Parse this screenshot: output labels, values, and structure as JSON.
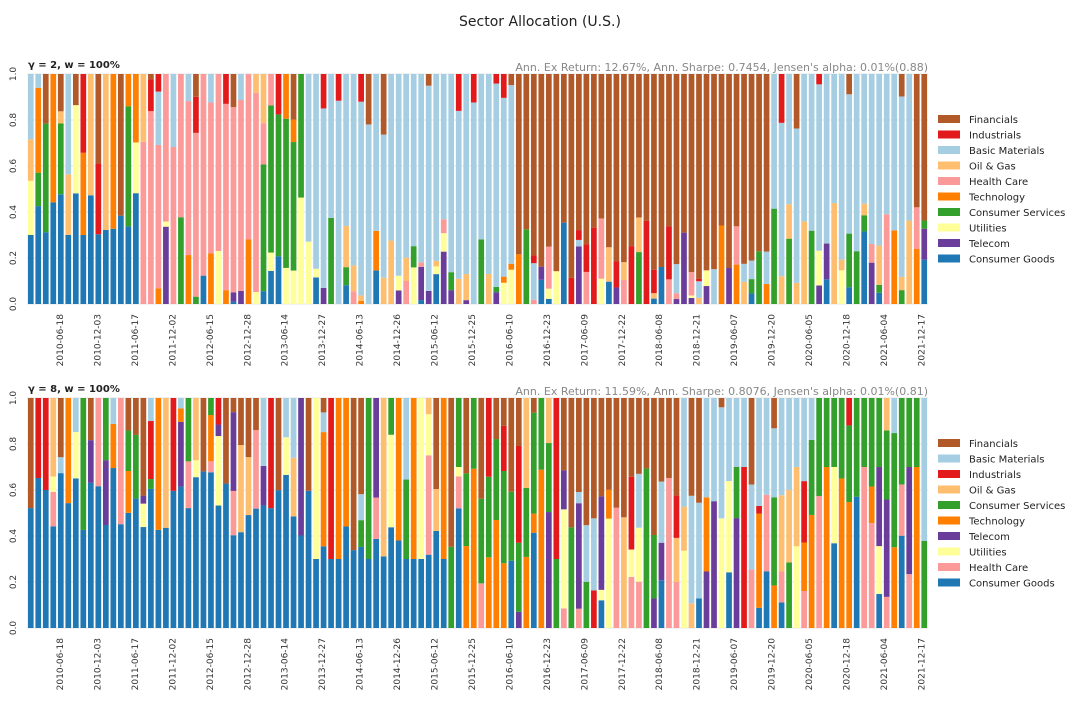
{
  "figure": {
    "title": "Sector Allocation (U.S.)"
  },
  "chart_data": [
    {
      "type": "bar",
      "stacked": true,
      "subtitle_left": "γ = 2, w = 100%",
      "subtitle_right": "Ann. Ex Return: 12.67%, Ann. Sharpe: 0.7454, Jensen's alpha: 0.01%(0.88)",
      "ylim": [
        0,
        1
      ],
      "y_ticks": [
        "0.0",
        "0.2",
        "0.4",
        "0.6",
        "0.8",
        "1.0"
      ],
      "x_tick_labels": [
        "2010-06-18",
        "2010-12-03",
        "2011-06-17",
        "2011-12-02",
        "2012-06-15",
        "2012-12-28",
        "2013-06-14",
        "2013-12-27",
        "2014-06-13",
        "2014-12-26",
        "2015-06-12",
        "2015-12-25",
        "2016-06-10",
        "2016-12-23",
        "2017-06-09",
        "2017-12-22",
        "2018-06-08",
        "2018-12-21",
        "2019-06-07",
        "2019-12-20",
        "2020-06-05",
        "2020-12-18",
        "2021-06-04",
        "2021-12-17"
      ],
      "grid": true,
      "legend_position": "right",
      "legend": [
        {
          "name": "Financials",
          "color": "#b15928"
        },
        {
          "name": "Industrials",
          "color": "#e31a1c"
        },
        {
          "name": "Basic Materials",
          "color": "#a6cee3"
        },
        {
          "name": "Oil & Gas",
          "color": "#fdbf6f"
        },
        {
          "name": "Health Care",
          "color": "#fb9a99"
        },
        {
          "name": "Technology",
          "color": "#ff7f00"
        },
        {
          "name": "Consumer Services",
          "color": "#33a02c"
        },
        {
          "name": "Utilities",
          "color": "#ffff99"
        },
        {
          "name": "Telecom",
          "color": "#6a3d9a"
        },
        {
          "name": "Consumer Goods",
          "color": "#1f78b4"
        }
      ],
      "regimes": [
        {
          "from_tick": 0.0,
          "to_tick": 2.8,
          "dominant": "Consumer Goods",
          "level": 0.35
        },
        {
          "from_tick": 2.8,
          "to_tick": 5.9,
          "dominant": "Health Care",
          "level": 0.75
        },
        {
          "from_tick": 5.9,
          "to_tick": 7.2,
          "dominant": "Consumer Services",
          "level": 0.6
        },
        {
          "from_tick": 7.2,
          "to_tick": 12.7,
          "dominant": "Basic Materials",
          "level": 0.75
        },
        {
          "from_tick": 12.7,
          "to_tick": 19.6,
          "dominant": "Financials",
          "level": 0.75
        },
        {
          "from_tick": 19.6,
          "to_tick": 23.3,
          "dominant": "Basic Materials",
          "level": 0.7
        },
        {
          "from_tick": 23.3,
          "to_tick": 24.0,
          "dominant": "Financials",
          "level": 0.6
        }
      ]
    },
    {
      "type": "bar",
      "stacked": true,
      "subtitle_left": "γ = 8, w = 100%",
      "subtitle_right": "Ann. Ex Return: 11.59%, Ann. Sharpe: 0.8076, Jensen's alpha: 0.01%(0.81)",
      "ylim": [
        0,
        1
      ],
      "y_ticks": [
        "0.0",
        "0.2",
        "0.4",
        "0.6",
        "0.8",
        "1.0"
      ],
      "x_tick_labels": [
        "2010-06-18",
        "2010-12-03",
        "2011-06-17",
        "2011-12-02",
        "2012-06-15",
        "2012-12-28",
        "2013-06-14",
        "2013-12-27",
        "2014-06-13",
        "2014-12-26",
        "2015-06-12",
        "2015-12-25",
        "2016-06-10",
        "2016-12-23",
        "2017-06-09",
        "2017-12-22",
        "2018-06-08",
        "2018-12-21",
        "2019-06-07",
        "2019-12-20",
        "2020-06-05",
        "2020-12-18",
        "2021-06-04",
        "2021-12-17"
      ],
      "grid": true,
      "legend_position": "right",
      "legend": [
        {
          "name": "Financials",
          "color": "#b15928"
        },
        {
          "name": "Basic Materials",
          "color": "#a6cee3"
        },
        {
          "name": "Industrials",
          "color": "#e31a1c"
        },
        {
          "name": "Oil & Gas",
          "color": "#fdbf6f"
        },
        {
          "name": "Consumer Services",
          "color": "#33a02c"
        },
        {
          "name": "Technology",
          "color": "#ff7f00"
        },
        {
          "name": "Telecom",
          "color": "#6a3d9a"
        },
        {
          "name": "Utilities",
          "color": "#ffff99"
        },
        {
          "name": "Health Care",
          "color": "#fb9a99"
        },
        {
          "name": "Consumer Goods",
          "color": "#1f78b4"
        }
      ],
      "regimes": [
        {
          "from_tick": 0.0,
          "to_tick": 7.4,
          "dominant": "Consumer Goods",
          "level": 0.55
        },
        {
          "from_tick": 7.4,
          "to_tick": 11.0,
          "dominant": "Consumer Goods",
          "level": 0.3
        },
        {
          "from_tick": 11.0,
          "to_tick": 14.0,
          "dominant": "Consumer Services",
          "level": 0.3
        },
        {
          "from_tick": 14.0,
          "to_tick": 17.2,
          "dominant": "Financials",
          "level": 0.45
        },
        {
          "from_tick": 17.2,
          "to_tick": 20.5,
          "dominant": "Basic Materials",
          "level": 0.35
        },
        {
          "from_tick": 20.5,
          "to_tick": 24.0,
          "dominant": "Consumer Services",
          "level": 0.35
        }
      ]
    }
  ]
}
